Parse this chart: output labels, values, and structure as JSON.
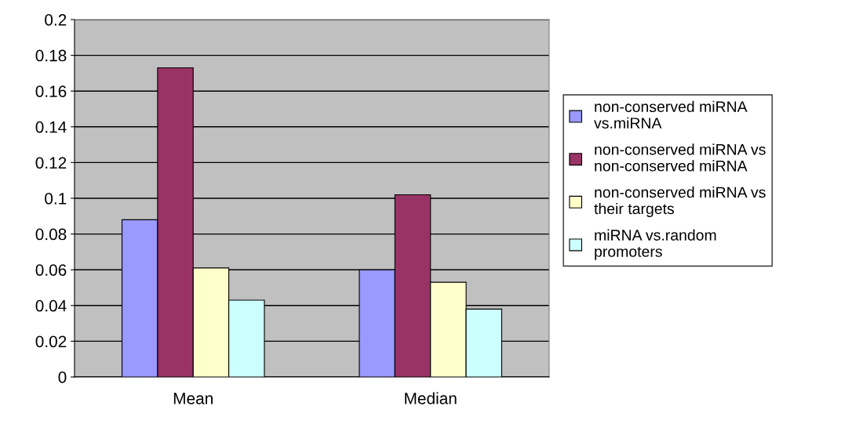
{
  "chart_data": {
    "type": "bar",
    "categories": [
      "Mean",
      "Median"
    ],
    "series": [
      {
        "name": "non-conserved miRNA\nvs.miRNA",
        "color": "#9999ff",
        "values": [
          0.088,
          0.06
        ]
      },
      {
        "name": "non-conserved miRNA vs\nnon-conserved miRNA",
        "color": "#993366",
        "values": [
          0.173,
          0.102
        ]
      },
      {
        "name": "non-conserved miRNA vs\ntheir targets",
        "color": "#ffffcc",
        "values": [
          0.061,
          0.053
        ]
      },
      {
        "name": "miRNA vs.random\npromoters",
        "color": "#ccffff",
        "values": [
          0.043,
          0.038
        ]
      }
    ],
    "ylim": [
      0,
      0.2
    ],
    "yticks": [
      0,
      0.02,
      0.04,
      0.06,
      0.08,
      0.1,
      0.12,
      0.14,
      0.16,
      0.18,
      0.2
    ],
    "grid": "y",
    "legend": "right"
  }
}
